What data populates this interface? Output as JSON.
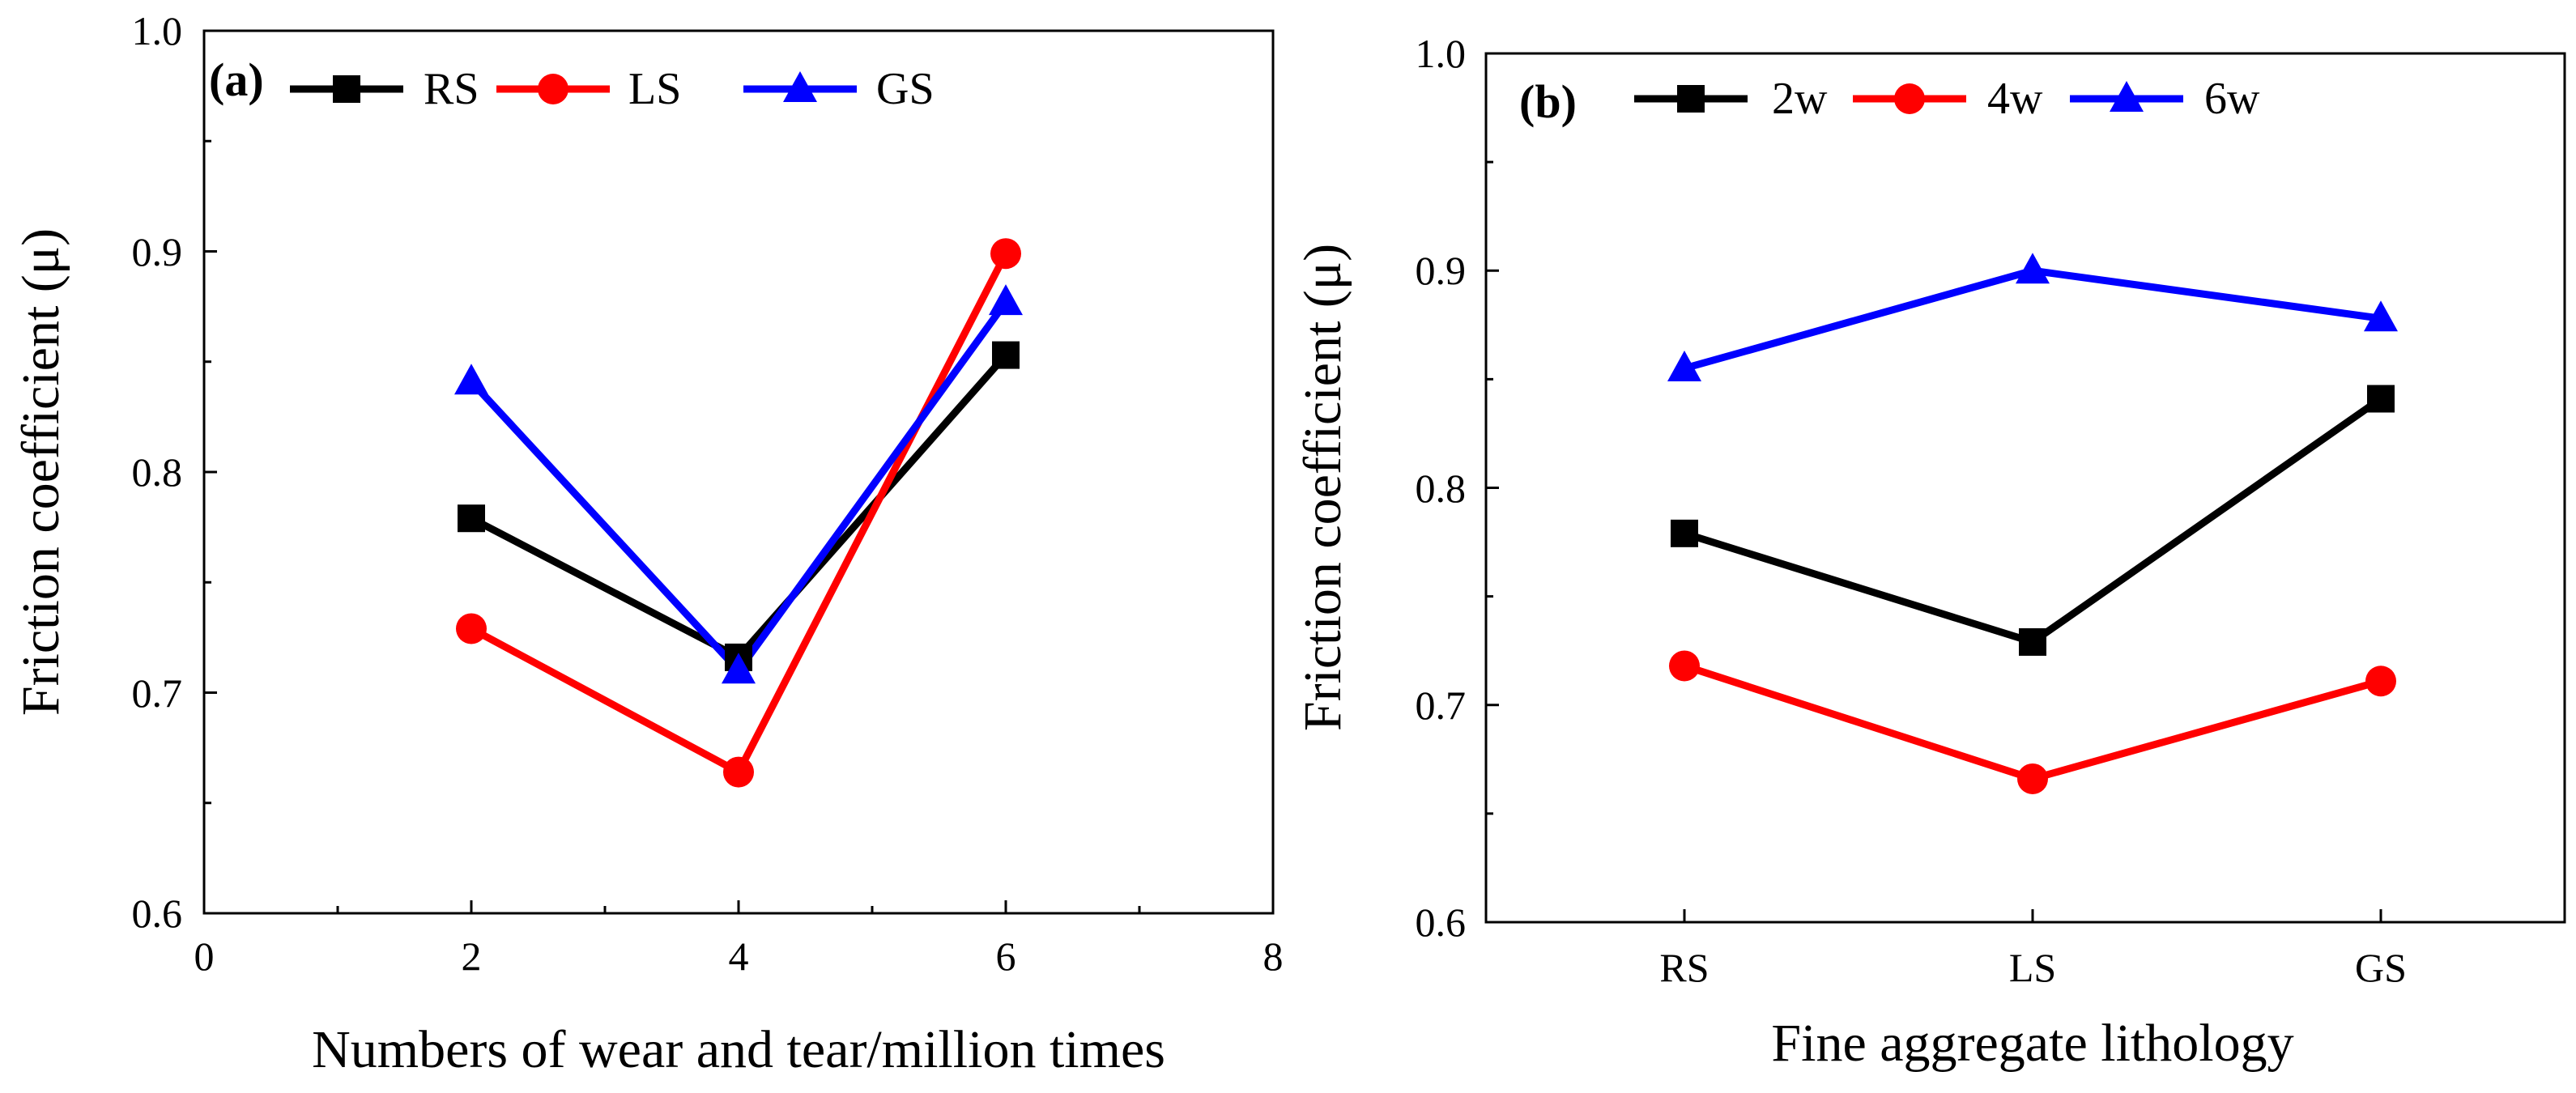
{
  "chart_data": [
    {
      "type": "line",
      "panel_label": "(a)",
      "xlabel": "Numbers of wear and tear/million times",
      "ylabel": "Friction coefficient (μ)",
      "xlim": [
        0,
        8
      ],
      "ylim": [
        0.6,
        1.0
      ],
      "xticks": [
        0,
        2,
        4,
        6,
        8
      ],
      "xtick_labels": [
        "0",
        "2",
        "4",
        "6",
        "8"
      ],
      "yticks": [
        0.6,
        0.7,
        0.8,
        0.9,
        1.0
      ],
      "ytick_labels": [
        "0.6",
        "0.7",
        "0.8",
        "0.9",
        "1.0"
      ],
      "x": [
        2,
        4,
        6
      ],
      "legend_position": "top-left",
      "grid": false,
      "series": [
        {
          "name": "RS",
          "values": [
            0.779,
            0.716,
            0.853
          ],
          "color": "#000000",
          "marker": "square"
        },
        {
          "name": "LS",
          "values": [
            0.729,
            0.664,
            0.899
          ],
          "color": "#ff0000",
          "marker": "circle"
        },
        {
          "name": "GS",
          "values": [
            0.841,
            0.71,
            0.877
          ],
          "color": "#0000ff",
          "marker": "triangle"
        }
      ]
    },
    {
      "type": "line",
      "panel_label": "(b)",
      "xlabel": "Fine aggregate lithology",
      "ylabel": "Friction coefficient (μ)",
      "ylim": [
        0.6,
        1.0
      ],
      "yticks": [
        0.6,
        0.7,
        0.8,
        0.9,
        1.0
      ],
      "ytick_labels": [
        "0.6",
        "0.7",
        "0.8",
        "0.9",
        "1.0"
      ],
      "categories": [
        "RS",
        "LS",
        "GS"
      ],
      "legend_position": "top-left",
      "grid": false,
      "series": [
        {
          "name": "2w",
          "values": [
            0.779,
            0.729,
            0.841
          ],
          "color": "#000000",
          "marker": "square"
        },
        {
          "name": "4w",
          "values": [
            0.718,
            0.666,
            0.711
          ],
          "color": "#ff0000",
          "marker": "circle"
        },
        {
          "name": "6w",
          "values": [
            0.855,
            0.9,
            0.878
          ],
          "color": "#0000ff",
          "marker": "triangle"
        }
      ]
    }
  ]
}
